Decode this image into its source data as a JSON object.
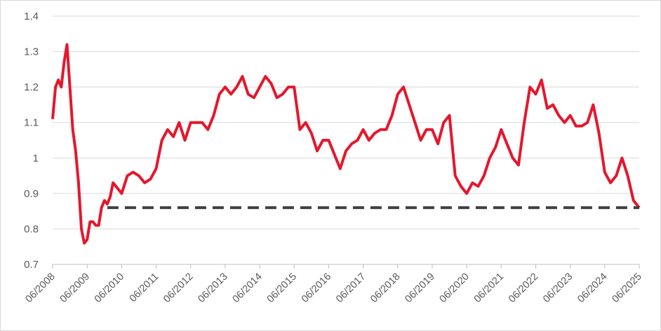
{
  "chart_data": {
    "type": "line",
    "title": "",
    "xlabel": "",
    "ylabel": "",
    "ylim": [
      0.7,
      1.4
    ],
    "xlim": [
      "2008-06",
      "2025-06"
    ],
    "grid": "horizontal",
    "legend": "none",
    "y_ticks": [
      "0.7",
      "0.8",
      "0.9",
      "1",
      "1.1",
      "1.2",
      "1.3",
      "1.4"
    ],
    "x_ticks": [
      "06/2008",
      "06/2009",
      "06/2010",
      "06/2011",
      "06/2012",
      "06/2013",
      "06/2014",
      "06/2015",
      "06/2016",
      "06/2017",
      "06/2018",
      "06/2019",
      "06/2020",
      "06/2021",
      "06/2022",
      "06/2023",
      "06/2024",
      "06/2025"
    ],
    "series": [
      {
        "color": "#e3182d",
        "style": "solid",
        "x": [
          "2008-06",
          "2008-07",
          "2008-08",
          "2008-09",
          "2008-10",
          "2008-11",
          "2008-12",
          "2009-01",
          "2009-02",
          "2009-03",
          "2009-04",
          "2009-05",
          "2009-06",
          "2009-07",
          "2009-08",
          "2009-09",
          "2009-10",
          "2009-11",
          "2009-12",
          "2010-01",
          "2010-02",
          "2010-03",
          "2010-04",
          "2010-05",
          "2010-06",
          "2010-08",
          "2010-10",
          "2010-12",
          "2011-02",
          "2011-04",
          "2011-06",
          "2011-08",
          "2011-10",
          "2011-12",
          "2012-02",
          "2012-04",
          "2012-06",
          "2012-08",
          "2012-10",
          "2012-12",
          "2013-02",
          "2013-04",
          "2013-06",
          "2013-08",
          "2013-10",
          "2013-12",
          "2014-02",
          "2014-04",
          "2014-06",
          "2014-08",
          "2014-10",
          "2014-12",
          "2015-02",
          "2015-04",
          "2015-06",
          "2015-08",
          "2015-10",
          "2015-12",
          "2016-02",
          "2016-04",
          "2016-06",
          "2016-08",
          "2016-10",
          "2016-12",
          "2017-02",
          "2017-04",
          "2017-06",
          "2017-08",
          "2017-10",
          "2017-12",
          "2018-02",
          "2018-04",
          "2018-06",
          "2018-08",
          "2018-10",
          "2018-12",
          "2019-02",
          "2019-04",
          "2019-06",
          "2019-08",
          "2019-10",
          "2019-12",
          "2020-02",
          "2020-04",
          "2020-06",
          "2020-08",
          "2020-10",
          "2020-12",
          "2021-02",
          "2021-04",
          "2021-06",
          "2021-08",
          "2021-10",
          "2021-12",
          "2022-02",
          "2022-04",
          "2022-06",
          "2022-08",
          "2022-10",
          "2022-12",
          "2023-02",
          "2023-04",
          "2023-06",
          "2023-08",
          "2023-10",
          "2023-12",
          "2024-02",
          "2024-04",
          "2024-06",
          "2024-08",
          "2024-10",
          "2024-12",
          "2025-02",
          "2025-04",
          "2025-06"
        ],
        "values": [
          1.11,
          1.2,
          1.22,
          1.2,
          1.27,
          1.32,
          1.2,
          1.08,
          1.02,
          0.93,
          0.8,
          0.76,
          0.77,
          0.82,
          0.82,
          0.81,
          0.81,
          0.86,
          0.88,
          0.87,
          0.89,
          0.93,
          0.92,
          0.91,
          0.9,
          0.95,
          0.96,
          0.95,
          0.93,
          0.94,
          0.97,
          1.05,
          1.08,
          1.06,
          1.1,
          1.05,
          1.1,
          1.1,
          1.1,
          1.08,
          1.12,
          1.18,
          1.2,
          1.18,
          1.2,
          1.23,
          1.18,
          1.17,
          1.2,
          1.23,
          1.21,
          1.17,
          1.18,
          1.2,
          1.2,
          1.08,
          1.1,
          1.07,
          1.02,
          1.05,
          1.05,
          1.01,
          0.97,
          1.02,
          1.04,
          1.05,
          1.08,
          1.05,
          1.07,
          1.08,
          1.08,
          1.12,
          1.18,
          1.2,
          1.15,
          1.1,
          1.05,
          1.08,
          1.08,
          1.04,
          1.1,
          1.12,
          0.95,
          0.92,
          0.9,
          0.93,
          0.92,
          0.95,
          1.0,
          1.03,
          1.08,
          1.04,
          1.0,
          0.98,
          1.1,
          1.2,
          1.18,
          1.22,
          1.14,
          1.15,
          1.12,
          1.1,
          1.12,
          1.09,
          1.09,
          1.1,
          1.15,
          1.07,
          0.96,
          0.93,
          0.95,
          1.0,
          0.95,
          0.88,
          0.86
        ]
      },
      {
        "color": "#404040",
        "style": "dashed",
        "x": [
          "2010-01",
          "2025-06"
        ],
        "values": [
          0.86,
          0.86
        ]
      }
    ]
  }
}
